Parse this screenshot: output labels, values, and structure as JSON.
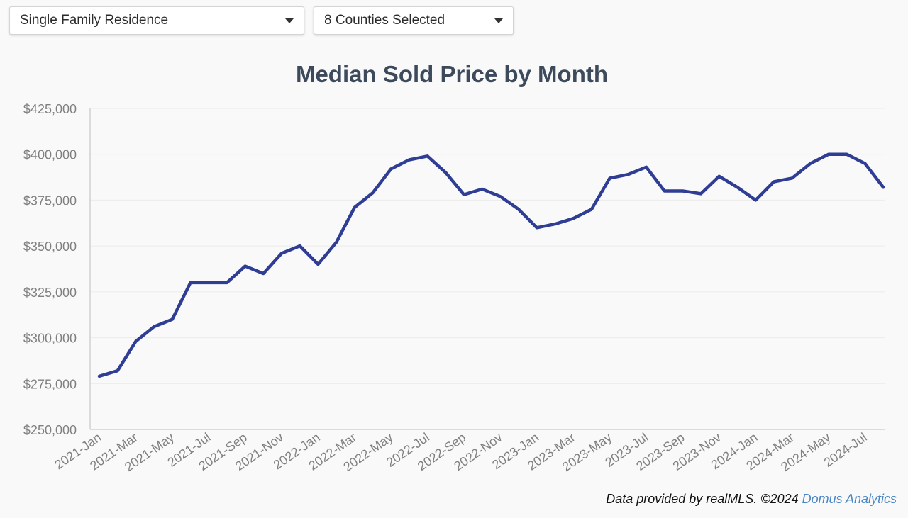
{
  "filters": {
    "property_type": {
      "value": "Single Family Residence",
      "icon": "caret-down-icon"
    },
    "counties": {
      "value": "8 Counties Selected",
      "icon": "caret-down-icon"
    }
  },
  "chart_data": {
    "type": "line",
    "title": "Median Sold Price by Month",
    "xlabel": "",
    "ylabel": "",
    "ylim": [
      250000,
      425000
    ],
    "yticks": [
      250000,
      275000,
      300000,
      325000,
      350000,
      375000,
      400000,
      425000
    ],
    "ytick_labels": [
      "$250,000",
      "$275,000",
      "$300,000",
      "$325,000",
      "$350,000",
      "$375,000",
      "$400,000",
      "$425,000"
    ],
    "x": [
      "2021-Jan",
      "2021-Feb",
      "2021-Mar",
      "2021-Apr",
      "2021-May",
      "2021-Jun",
      "2021-Jul",
      "2021-Aug",
      "2021-Sep",
      "2021-Oct",
      "2021-Nov",
      "2021-Dec",
      "2022-Jan",
      "2022-Feb",
      "2022-Mar",
      "2022-Apr",
      "2022-May",
      "2022-Jun",
      "2022-Jul",
      "2022-Aug",
      "2022-Sep",
      "2022-Oct",
      "2022-Nov",
      "2022-Dec",
      "2023-Jan",
      "2023-Feb",
      "2023-Mar",
      "2023-Apr",
      "2023-May",
      "2023-Jun",
      "2023-Jul",
      "2023-Aug",
      "2023-Sep",
      "2023-Oct",
      "2023-Nov",
      "2023-Dec",
      "2024-Jan",
      "2024-Feb",
      "2024-Mar",
      "2024-Apr",
      "2024-May",
      "2024-Jun",
      "2024-Jul",
      "2024-Aug"
    ],
    "xtick_labels": [
      "2021-Jan",
      "2021-Mar",
      "2021-May",
      "2021-Jul",
      "2021-Sep",
      "2021-Nov",
      "2022-Jan",
      "2022-Mar",
      "2022-May",
      "2022-Jul",
      "2022-Sep",
      "2022-Nov",
      "2023-Jan",
      "2023-Mar",
      "2023-May",
      "2023-Jul",
      "2023-Sep",
      "2023-Nov",
      "2024-Jan",
      "2024-Mar",
      "2024-May",
      "2024-Jul"
    ],
    "series": [
      {
        "name": "Median Sold Price",
        "color": "#2f3e94",
        "values": [
          279000,
          282000,
          298000,
          306000,
          310000,
          330000,
          330000,
          330000,
          339000,
          335000,
          346000,
          350000,
          340000,
          352000,
          371000,
          379000,
          392000,
          397000,
          399000,
          390000,
          378000,
          381000,
          377000,
          370000,
          360000,
          362000,
          365000,
          370000,
          387000,
          389000,
          393000,
          380000,
          380000,
          378500,
          388000,
          382000,
          375000,
          385000,
          387000,
          395000,
          400000,
          400000,
          395000,
          382000
        ]
      }
    ],
    "grid": true,
    "legend": "none"
  },
  "footer": {
    "text": "Data provided by realMLS.  ©2024 ",
    "link": "Domus Analytics"
  },
  "colors": {
    "line": "#2f3e94",
    "title": "#3d4a5b",
    "link": "#4a86c5",
    "axis_text": "#808080"
  }
}
